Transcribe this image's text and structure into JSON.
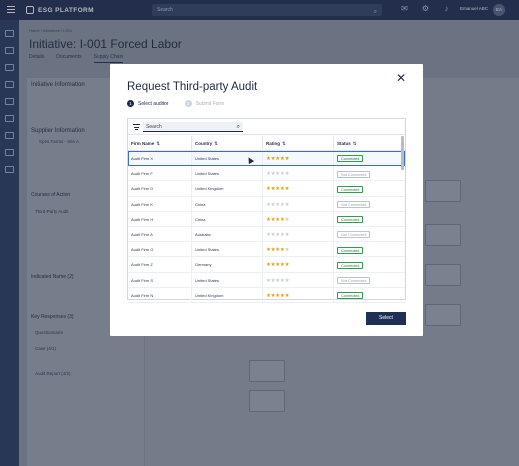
{
  "app": {
    "brand": "ESG PLATFORM",
    "search_placeholder": "Search",
    "user_name": "Emanuel ABC",
    "user_initials": "EA",
    "breadcrumb": "Home  /  Initiatives  /  I-001",
    "page_title": "Initiative: I-001 Forced Labor",
    "tabs": [
      "Details",
      "Documents",
      "Supply Chain"
    ],
    "left_panel": {
      "initiative_header": "Initiative Information",
      "supplier_header": "Supplier Information",
      "supplier_name": "Spes Farms - Site A",
      "courses_header": "Courses of Action",
      "course_item": "Third-Party Audit",
      "indicated_header": "Indicated Name (2)",
      "key_header": "Key Responses (3)",
      "key_items": [
        "Questionnaire",
        "Case (4/1)",
        "Audit Report (4/2)"
      ]
    }
  },
  "modal": {
    "title": "Request Third-party Audit",
    "close_glyph": "✕",
    "steps": [
      {
        "num": "1",
        "label": "Select auditor"
      },
      {
        "num": "2",
        "label": "Submit Form"
      }
    ],
    "search_placeholder": "Search",
    "columns": [
      "Firm Name",
      "Country",
      "Rating",
      "Status"
    ],
    "sort_glyph": "⇅",
    "rows": [
      {
        "firm": "Audit Firm X",
        "country": "United States",
        "rating": 5,
        "status": "Connected"
      },
      {
        "firm": "Audit Firm F",
        "country": "United States",
        "rating": 0,
        "status": "Not Connected"
      },
      {
        "firm": "Audit Firm D",
        "country": "United Kingdom",
        "rating": 5,
        "status": "Connected"
      },
      {
        "firm": "Audit Firm K",
        "country": "China",
        "rating": 0,
        "status": "Not Connected"
      },
      {
        "firm": "Audit Firm H",
        "country": "China",
        "rating": 4,
        "status": "Connected"
      },
      {
        "firm": "Audit Firm A",
        "country": "Australia",
        "rating": 0,
        "status": "Not Connected"
      },
      {
        "firm": "Audit Firm G",
        "country": "United States",
        "rating": 4,
        "status": "Connected"
      },
      {
        "firm": "Audit Firm Z",
        "country": "Germany",
        "rating": 5,
        "status": "Connected"
      },
      {
        "firm": "Audit Firm S",
        "country": "United States",
        "rating": 0,
        "status": "Not Connected"
      },
      {
        "firm": "Audit Firm N",
        "country": "United Kingdom",
        "rating": 5,
        "status": "Connected"
      }
    ],
    "selected_row_index": 0,
    "select_label": "Select"
  },
  "colors": {
    "navy": "#1f2f55",
    "connected": "#2e9e4e",
    "star": "#e2a21a"
  }
}
